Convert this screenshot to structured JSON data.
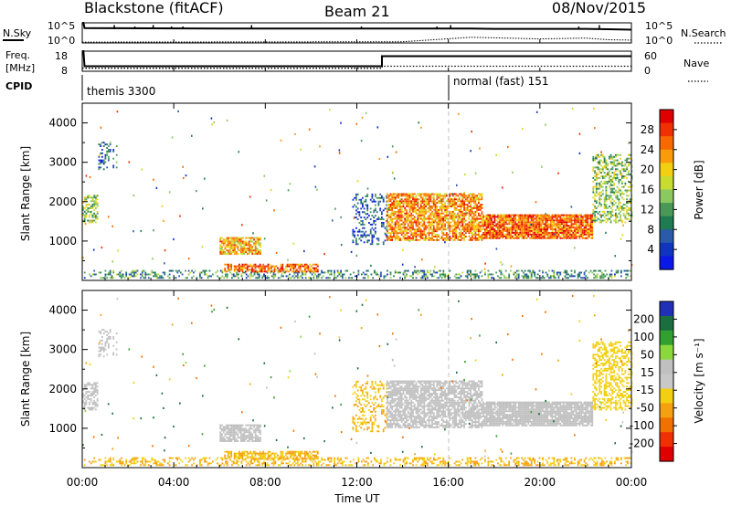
{
  "header": {
    "radar": "Blackstone (fitACF)",
    "beam": "Beam 21",
    "date": "08/Nov/2015"
  },
  "noise_panel": {
    "left_label": "N.Sky",
    "right_label": "N.Search",
    "scale_top": "10^5",
    "scale_bottom": "10^0"
  },
  "freq_panel": {
    "left_label_line1": "Freq.",
    "left_label_line2": "[MHz]",
    "left_ticks": [
      "18",
      "8"
    ],
    "right_ticks": [
      "60",
      "0"
    ],
    "right_label": "Nave"
  },
  "cpid_panel": {
    "label": "CPID",
    "segments": [
      "themis 3300",
      "normal (fast) 151"
    ]
  },
  "axes": {
    "ylabel": "Slant Range [km]",
    "xlabel": "Time UT",
    "yticks": [
      "4000",
      "3000",
      "2000",
      "1000"
    ],
    "xticks": [
      "00:00",
      "04:00",
      "08:00",
      "12:00",
      "16:00",
      "20:00",
      "00:00"
    ]
  },
  "colorbars": {
    "power": {
      "label": "Power [dB]",
      "ticks": [
        "28",
        "24",
        "20",
        "16",
        "12",
        "8",
        "4"
      ],
      "colors": [
        "#e00000",
        "#f03000",
        "#f86a00",
        "#fb9a0a",
        "#f2cf10",
        "#c8dc30",
        "#8cc860",
        "#4a9858",
        "#1f7b52",
        "#2a5aa8",
        "#1034c0",
        "#0a18e8"
      ]
    },
    "velocity": {
      "label": "Velocity [m s⁻¹]",
      "ticks": [
        "200",
        "100",
        "50",
        "15",
        "-15",
        "-50",
        "-100",
        "-200"
      ],
      "colors": [
        "#2030b8",
        "#1a6e40",
        "#32a030",
        "#8ad83a",
        "#c0c0c0",
        "#c8c8c8",
        "#f2cf10",
        "#f5a010",
        "#f07000",
        "#f03000",
        "#e00000"
      ]
    }
  },
  "chart_data": [
    {
      "type": "line",
      "title": "",
      "xlabel": "",
      "ylabel": "N.Sky",
      "xlim": [
        0,
        24
      ],
      "series": [
        {
          "name": "N.Sky",
          "x": [
            0,
            0.05,
            0.1,
            6,
            12,
            17,
            18,
            22,
            23,
            24
          ],
          "y": [
            5.0,
            5.0,
            3.7,
            3.6,
            3.6,
            3.6,
            3.5,
            3.5,
            3.4,
            3.3
          ]
        },
        {
          "name": "N.Search",
          "x": [
            0,
            14,
            17,
            20,
            22,
            23,
            24
          ],
          "y": [
            0.2,
            0.3,
            1.4,
            1.0,
            1.2,
            0.8,
            0.7
          ]
        }
      ]
    },
    {
      "type": "line",
      "title": "",
      "xlabel": "",
      "ylabel": "Freq. [MHz]",
      "xlim": [
        0,
        24
      ],
      "series": [
        {
          "name": "Freq.",
          "x": [
            0,
            0.05,
            0.1,
            13.1,
            13.1,
            24
          ],
          "y": [
            18,
            18,
            10.5,
            10.5,
            15.5,
            15.5
          ]
        },
        {
          "name": "Nave",
          "x": [
            0,
            13.1,
            13.1,
            24
          ],
          "y": [
            9,
            9,
            15,
            15
          ]
        }
      ]
    },
    {
      "type": "heatmap",
      "title": "",
      "xlabel": "Time UT",
      "ylabel": "Slant Range [km]",
      "value_label": "Power [dB]",
      "xlim": [
        0,
        24
      ],
      "ylim": [
        0,
        4500
      ],
      "clim": [
        0,
        30
      ],
      "regions": [
        {
          "t": [
            0.0,
            0.7
          ],
          "r": [
            1450,
            2150
          ],
          "value": 14
        },
        {
          "t": [
            0.7,
            1.5
          ],
          "r": [
            2800,
            3500
          ],
          "value": 7
        },
        {
          "t": [
            0.0,
            24.0
          ],
          "r": [
            40,
            240
          ],
          "value": 10
        },
        {
          "t": [
            6.0,
            7.8
          ],
          "r": [
            650,
            1100
          ],
          "value": 20
        },
        {
          "t": [
            6.2,
            10.3
          ],
          "r": [
            200,
            420
          ],
          "value": 24
        },
        {
          "t": [
            11.8,
            13.3
          ],
          "r": [
            900,
            2200
          ],
          "value": 6
        },
        {
          "t": [
            13.3,
            17.5
          ],
          "r": [
            1000,
            2200
          ],
          "value": 22
        },
        {
          "t": [
            17.5,
            22.3
          ],
          "r": [
            1050,
            1650
          ],
          "value": 24
        },
        {
          "t": [
            22.3,
            24.0
          ],
          "r": [
            1450,
            3200
          ],
          "value": 14
        }
      ]
    },
    {
      "type": "heatmap",
      "title": "",
      "xlabel": "Time UT",
      "ylabel": "Slant Range [km]",
      "value_label": "Velocity [m s-1]",
      "xlim": [
        0,
        24
      ],
      "ylim": [
        0,
        4500
      ],
      "clim": [
        -200,
        200
      ],
      "regions": [
        {
          "t": [
            0.0,
            0.7
          ],
          "r": [
            1450,
            2150
          ],
          "value": 0
        },
        {
          "t": [
            0.7,
            1.5
          ],
          "r": [
            2800,
            3500
          ],
          "value": 0
        },
        {
          "t": [
            0.0,
            24.0
          ],
          "r": [
            40,
            240
          ],
          "value": -40
        },
        {
          "t": [
            6.0,
            7.8
          ],
          "r": [
            650,
            1100
          ],
          "value": 0
        },
        {
          "t": [
            6.2,
            10.3
          ],
          "r": [
            200,
            420
          ],
          "value": -40
        },
        {
          "t": [
            11.8,
            13.3
          ],
          "r": [
            900,
            2200
          ],
          "value": -40
        },
        {
          "t": [
            13.3,
            17.5
          ],
          "r": [
            1000,
            2200
          ],
          "value": 0
        },
        {
          "t": [
            17.5,
            22.3
          ],
          "r": [
            1050,
            1650
          ],
          "value": 0
        },
        {
          "t": [
            22.3,
            24.0
          ],
          "r": [
            1450,
            3200
          ],
          "value": -30
        },
        {
          "t": [
            23.3,
            23.6
          ],
          "r": [
            2950,
            3150
          ],
          "value": 200
        }
      ]
    }
  ]
}
